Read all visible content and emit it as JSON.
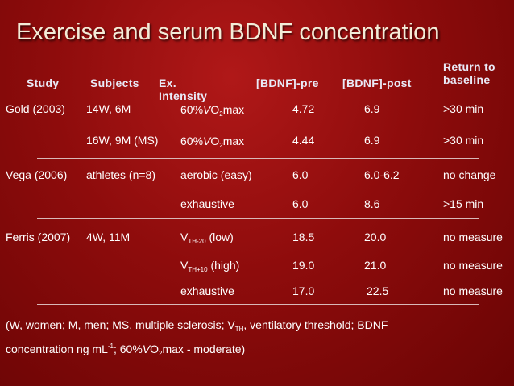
{
  "title": "Exercise and serum BDNF concentration",
  "headers": {
    "study": "Study",
    "subjects": "Subjects",
    "ex_intensity_line1": "Ex.",
    "ex_intensity_line2": "Intensity",
    "bdnf_pre": "[BDNF]-pre",
    "bdnf_post": "[BDNF]-post",
    "return_line1": "Return to",
    "return_line2": "baseline"
  },
  "rows": [
    {
      "study": "Gold (2003)",
      "subjects": "14W, 6M",
      "intensity": {
        "pct": "60%",
        "v": "V",
        "o": "O",
        "sub": "2",
        "rest": "max"
      },
      "pre": "4.72",
      "post": "6.9",
      "return": ">30 min"
    },
    {
      "study": "",
      "subjects": "16W, 9M (MS)",
      "intensity": {
        "pct": "60%",
        "v": "V",
        "o": "O",
        "sub": "2",
        "rest": "max"
      },
      "pre": "4.44",
      "post": "6.9",
      "return": ">30 min"
    },
    {
      "study": "Vega (2006)",
      "subjects": "athletes (n=8)",
      "intensity_text": "aerobic (easy)",
      "pre": "6.0",
      "post": "6.0-6.2",
      "return": "no change"
    },
    {
      "study": "",
      "subjects": "",
      "intensity_text": "exhaustive",
      "pre": "6.0",
      "post": "8.6",
      "return": ">15 min"
    },
    {
      "study": "Ferris (2007)",
      "subjects": "4W, 11M",
      "intensity_vth": {
        "v": "V",
        "sub": "TH-20",
        "rest": " (low)"
      },
      "pre": "18.5",
      "post": "20.0",
      "return": "no measure"
    },
    {
      "study": "",
      "subjects": "",
      "intensity_vth": {
        "v": "V",
        "sub": "TH+10",
        "rest": " (high)"
      },
      "pre": "19.0",
      "post": "21.0",
      "return": "no measure"
    },
    {
      "study": "",
      "subjects": "",
      "intensity_text": "exhaustive",
      "pre": "17.0",
      "post": "22.5",
      "return": "no measure"
    }
  ],
  "footnote": {
    "p1": "(W, women; M, men; MS, multiple sclerosis; V",
    "p1_sub": "TH",
    "p2": ", ventilatory threshold; BDNF",
    "p3": "concentration ng mL",
    "p3_sup": "-1",
    "p4": "; 60%",
    "p4_v": "V",
    "p4_o": "O",
    "p4_sub": "2",
    "p5": "max - moderate)"
  },
  "colors": {
    "background": "#8e0c0c",
    "title": "#f3ecd8",
    "header": "#e9eaf7",
    "text": "#ffffff",
    "rule": "#d9b8b8"
  }
}
